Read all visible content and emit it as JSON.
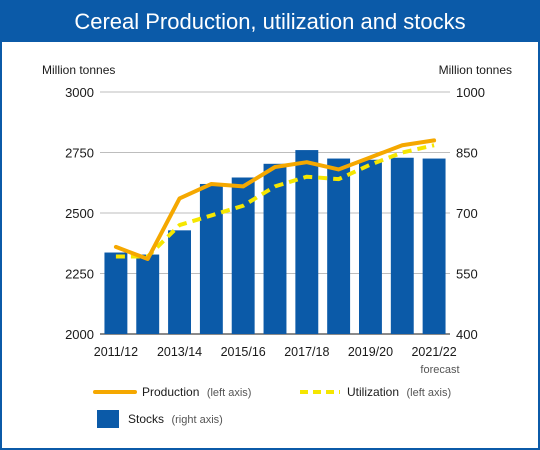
{
  "chart_data": {
    "type": "bar+line",
    "title": "Cereal Production, utilization and stocks",
    "left_axis": {
      "unit": "Million tonnes",
      "range": [
        2000,
        3000
      ],
      "ticks": [
        "2000",
        "2250",
        "2500",
        "2750",
        "3000"
      ]
    },
    "right_axis": {
      "unit": "Million tonnes",
      "range": [
        400,
        1000
      ],
      "ticks": [
        "400",
        "550",
        "700",
        "850",
        "1000"
      ]
    },
    "categories": [
      "2011/12",
      "2012/13",
      "2013/14",
      "2014/15",
      "2015/16",
      "2016/17",
      "2017/18",
      "2018/19",
      "2019/20",
      "2020/21",
      "2021/22"
    ],
    "x_tick_labels": [
      "2011/12",
      "2013/14",
      "2015/16",
      "2017/18",
      "2019/20",
      "2021/22"
    ],
    "forecast_note": "forecast",
    "grid": true,
    "legend_position": "bottom",
    "series": [
      {
        "name": "Stocks",
        "axis_note": "(right axis)",
        "type": "bar",
        "axis": "right",
        "color": "#0b5aa8",
        "values": [
          602,
          597,
          657,
          772,
          788,
          822,
          856,
          835,
          832,
          837,
          835
        ]
      },
      {
        "name": "Production",
        "axis_note": "(left axis)",
        "type": "line",
        "axis": "left",
        "color": "#f5a800",
        "values": [
          2360,
          2310,
          2560,
          2620,
          2610,
          2690,
          2710,
          2680,
          2730,
          2780,
          2800
        ]
      },
      {
        "name": "Utilization",
        "axis_note": "(left axis)",
        "type": "line-dashed",
        "axis": "left",
        "color": "#f5e600",
        "values": [
          2320,
          2320,
          2450,
          2490,
          2530,
          2610,
          2650,
          2640,
          2700,
          2750,
          2780
        ]
      }
    ]
  }
}
